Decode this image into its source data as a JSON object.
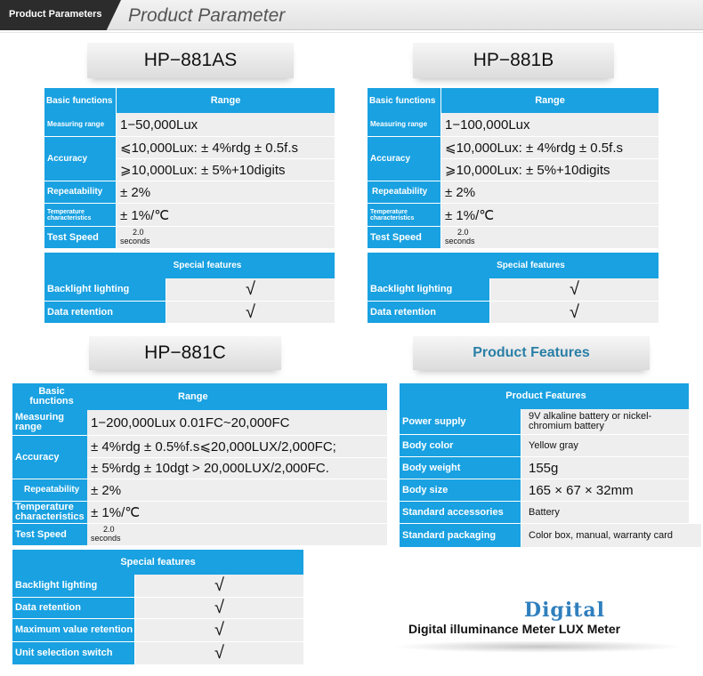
{
  "header": {
    "tab_label": "Product Parameters",
    "title": "Product Parameter"
  },
  "model_a": {
    "name": "HP−881AS",
    "head_label": "Basic functions",
    "head_range": "Range",
    "measuring_label": "Measuring range",
    "measuring_value": "1−50,000Lux",
    "accuracy_label": "Accuracy",
    "accuracy_1": "⩽10,000Lux: ± 4%rdg ± 0.5f.s",
    "accuracy_2": "⩾10,000Lux: ± 5%+10digits",
    "repeat_label": "Repeatability",
    "repeat_value": "± 2%",
    "temp_label": "Temperature characteristics",
    "temp_value": "± 1%/℃",
    "speed_label": "Test Speed",
    "speed_num": "2.0",
    "speed_unit": "seconds",
    "special_title": "Special features",
    "f1_label": "Backlight lighting",
    "f1_value": "√",
    "f2_label": "Data retention",
    "f2_value": "√"
  },
  "model_b": {
    "name": "HP−881B",
    "head_label": "Basic functions",
    "head_range": "Range",
    "measuring_label": "Measuring range",
    "measuring_value": "1−100,000Lux",
    "accuracy_label": "Accuracy",
    "accuracy_1": "⩽10,000Lux: ± 4%rdg ± 0.5f.s",
    "accuracy_2": "⩾10,000Lux: ± 5%+10digits",
    "repeat_label": "Repeatability",
    "repeat_value": "± 2%",
    "temp_label": "Temperature characteristics",
    "temp_value": "± 1%/℃",
    "speed_label": "Test Speed",
    "speed_num": "2.0",
    "speed_unit": "seconds",
    "special_title": "Special features",
    "f1_label": "Backlight lighting",
    "f1_value": "√",
    "f2_label": "Data retention",
    "f2_value": "√"
  },
  "model_c": {
    "name": "HP−881C",
    "head_label": "Basic functions",
    "head_range": "Range",
    "measuring_label": "Measuring range",
    "measuring_value": "1−200,000Lux  0.01FC~20,000FC",
    "accuracy_label": "Accuracy",
    "accuracy_1": "± 4%rdg ± 0.5%f.s⩽20,000LUX/2,000FC;",
    "accuracy_2": "± 5%rdg ± 10dgt > 20,000LUX/2,000FC.",
    "repeat_label": "Repeatability",
    "repeat_value": "± 2%",
    "temp_label": "Temperature characteristics",
    "temp_value": "± 1%/℃",
    "speed_label": "Test Speed",
    "speed_num": "2.0",
    "speed_unit": "seconds",
    "special_title": "Special features",
    "f1_label": "Backlight lighting",
    "f1_value": "√",
    "f2_label": "Data retention",
    "f2_value": "√",
    "f3_label": "Maximum value retention",
    "f3_value": "√",
    "f4_label": "Unit selection switch",
    "f4_value": "√"
  },
  "features": {
    "banner": "Product Features",
    "head": "Product Features",
    "power_label": "Power supply",
    "power_value": "9V alkaline battery or nickel-chromium battery",
    "color_label": "Body color",
    "color_value": "Yellow gray",
    "weight_label": "Body weight",
    "weight_value": "155g",
    "size_label": "Body size",
    "size_value": "165 × 67 × 32mm",
    "acc_label": "Standard accessories",
    "acc_value": "Battery",
    "pack_label": "Standard packaging",
    "pack_value": "Color box, manual, warranty card"
  },
  "footer": {
    "logo_text": "Digital",
    "subtitle": "Digital illuminance Meter LUX Meter"
  },
  "colors": {
    "accent": "#19a1e1",
    "cell": "#eeeeee",
    "dark_tab": "#2c2c2c",
    "feature_title": "#2a7fa6"
  }
}
